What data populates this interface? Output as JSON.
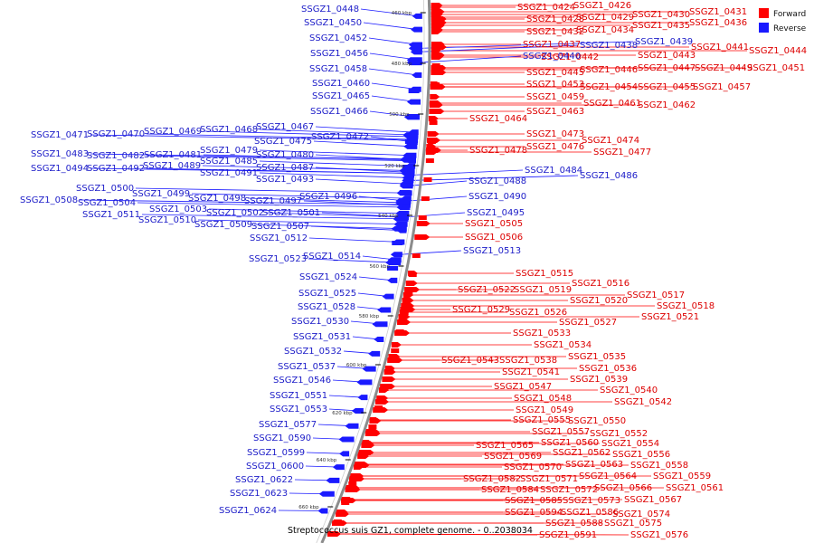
{
  "caption": "Streptococcus suis GZ1, complete genome. - 0..2038034",
  "legend": [
    {
      "label": "Forward",
      "color": "#ff0000"
    },
    {
      "label": "Reverse",
      "color": "#1a1aff"
    }
  ],
  "colors": {
    "forward": "#ff0000",
    "reverse": "#1a1aff",
    "forward_text": "#dd0000",
    "reverse_text": "#1c1cc8",
    "backbone": "#8c8c8c"
  },
  "ticks": [
    "460 kbp",
    "480 kbp",
    "500 kbp",
    "520 kbp",
    "540 kbp",
    "560 kbp",
    "580 kbp",
    "600 kbp",
    "620 kbp",
    "640 kbp",
    "660 kbp"
  ],
  "forward_genes": [
    "SSGZ1_0424",
    "SSGZ1_0426",
    "SSGZ1_0431",
    "SSGZ1_0428",
    "SSGZ1_0429",
    "SSGZ1_0430",
    "SSGZ1_0435",
    "SSGZ1_0436",
    "SSGZ1_0432",
    "SSGZ1_0434",
    "SSGZ1_0437",
    "SSGZ1_0441",
    "SSGZ1_0444",
    "SSGZ1_0442",
    "SSGZ1_0443",
    "SSGZ1_0445",
    "SSGZ1_0446",
    "SSGZ1_0447",
    "SSGZ1_0449",
    "SSGZ1_0451",
    "SSGZ1_0453",
    "SSGZ1_0454",
    "SSGZ1_0455",
    "SSGZ1_0457",
    "SSGZ1_0459",
    "SSGZ1_0461",
    "SSGZ1_0462",
    "SSGZ1_0463",
    "SSGZ1_0464",
    "SSGZ1_0473",
    "SSGZ1_0474",
    "SSGZ1_0478",
    "SSGZ1_0476",
    "SSGZ1_0477",
    "SSGZ1_0505",
    "SSGZ1_0506",
    "SSGZ1_0515",
    "SSGZ1_0516",
    "SSGZ1_0522",
    "SSGZ1_0519",
    "SSGZ1_0517",
    "SSGZ1_0520",
    "SSGZ1_0518",
    "SSGZ1_0529",
    "SSGZ1_0526",
    "SSGZ1_0521",
    "SSGZ1_0527",
    "SSGZ1_0533",
    "SSGZ1_0534",
    "SSGZ1_0535",
    "SSGZ1_0543",
    "SSGZ1_0538",
    "SSGZ1_0536",
    "SSGZ1_0541",
    "SSGZ1_0539",
    "SSGZ1_0547",
    "SSGZ1_0540",
    "SSGZ1_0548",
    "SSGZ1_0542",
    "SSGZ1_0549",
    "SSGZ1_0555",
    "SSGZ1_0550",
    "SSGZ1_0557",
    "SSGZ1_0552",
    "SSGZ1_0560",
    "SSGZ1_0554",
    "SSGZ1_0565",
    "SSGZ1_0562",
    "SSGZ1_0556",
    "SSGZ1_0569",
    "SSGZ1_0563",
    "SSGZ1_0558",
    "SSGZ1_0570",
    "SSGZ1_0564",
    "SSGZ1_0559",
    "SSGZ1_0582",
    "SSGZ1_0571",
    "SSGZ1_0566",
    "SSGZ1_0561",
    "SSGZ1_0584",
    "SSGZ1_0572",
    "SSGZ1_0567",
    "SSGZ1_0585",
    "SSGZ1_0573",
    "SSGZ1_0594",
    "SSGZ1_0586",
    "SSGZ1_0574",
    "SSGZ1_0588",
    "SSGZ1_0575",
    "SSGZ1_0591",
    "SSGZ1_0576"
  ],
  "reverse_genes": [
    "SSGZ1_0448",
    "SSGZ1_0450",
    "SSGZ1_0452",
    "SSGZ1_0456",
    "SSGZ1_0458",
    "SSGZ1_0460",
    "SSGZ1_0465",
    "SSGZ1_0466",
    "SSGZ1_0471",
    "SSGZ1_0470",
    "SSGZ1_0469",
    "SSGZ1_0468",
    "SSGZ1_0467",
    "SSGZ1_0472",
    "SSGZ1_0475",
    "SSGZ1_0483",
    "SSGZ1_0482",
    "SSGZ1_0481",
    "SSGZ1_0479",
    "SSGZ1_0480",
    "SSGZ1_0485",
    "SSGZ1_0494",
    "SSGZ1_0492",
    "SSGZ1_0489",
    "SSGZ1_0487",
    "SSGZ1_0491",
    "SSGZ1_0493",
    "SSGZ1_0500",
    "SSGZ1_0499",
    "SSGZ1_0508",
    "SSGZ1_0504",
    "SSGZ1_0498",
    "SSGZ1_0497",
    "SSGZ1_0496",
    "SSGZ1_0503",
    "SSGZ1_0511",
    "SSGZ1_0502",
    "SSGZ1_0501",
    "SSGZ1_0510",
    "SSGZ1_0509",
    "SSGZ1_0507",
    "SSGZ1_0512",
    "SSGZ1_0514",
    "SSGZ1_0523",
    "SSGZ1_0524",
    "SSGZ1_0525",
    "SSGZ1_0528",
    "SSGZ1_0530",
    "SSGZ1_0531",
    "SSGZ1_0532",
    "SSGZ1_0537",
    "SSGZ1_0546",
    "SSGZ1_0551",
    "SSGZ1_0553",
    "SSGZ1_0577",
    "SSGZ1_0590",
    "SSGZ1_0599",
    "SSGZ1_0600",
    "SSGZ1_0622",
    "SSGZ1_0623",
    "SSGZ1_0624",
    "SSGZ1_0438",
    "SSGZ1_0439",
    "SSGZ1_0440",
    "SSGZ1_0484",
    "SSGZ1_0486",
    "SSGZ1_0488",
    "SSGZ1_0490",
    "SSGZ1_0495",
    "SSGZ1_0513"
  ]
}
